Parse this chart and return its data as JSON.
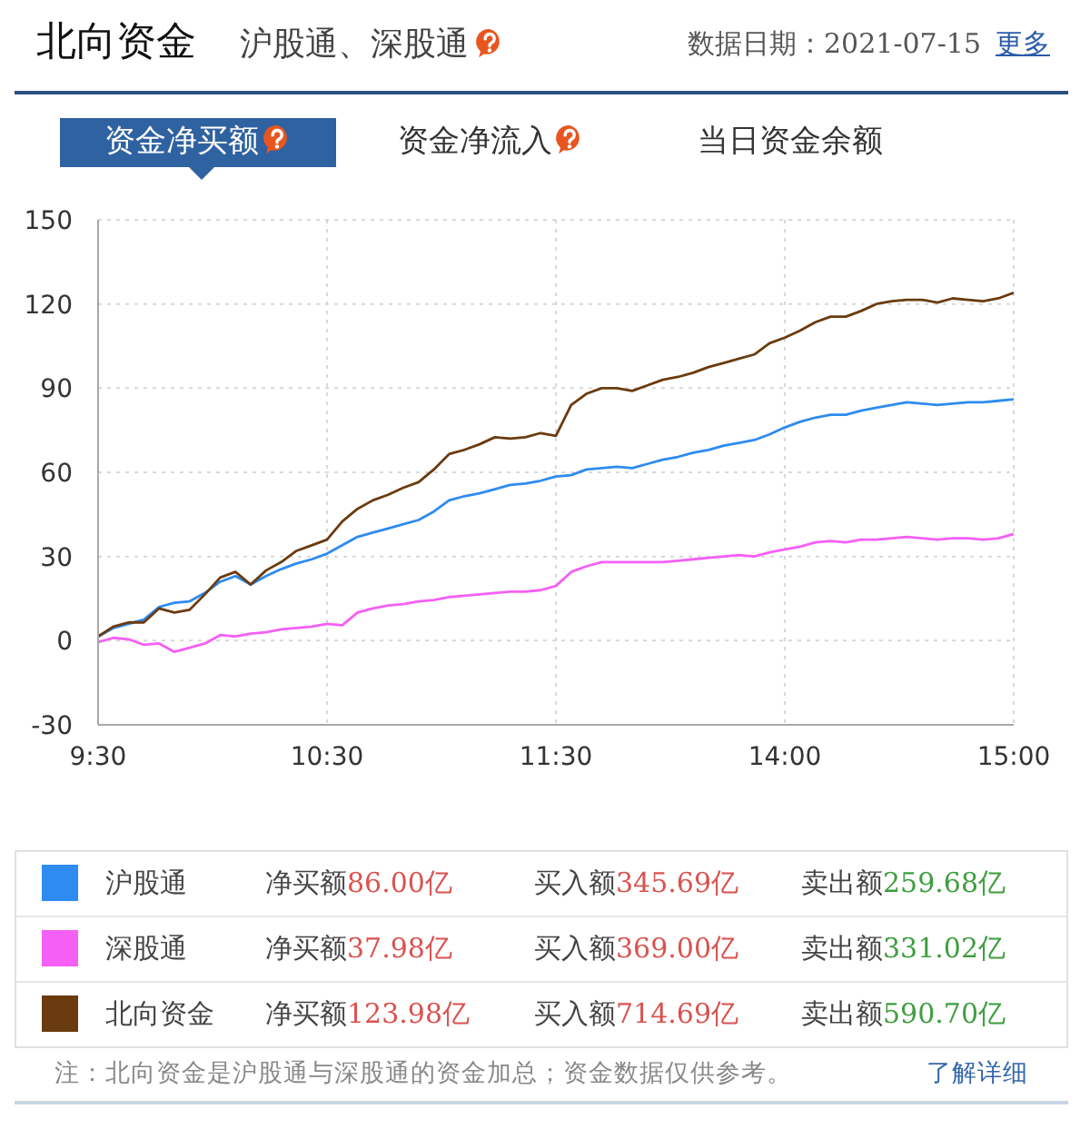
{
  "chart_data": {
    "type": "line",
    "title": "北向资金",
    "subtitle": "沪股通、深股通",
    "categories": [
      "9:30",
      null,
      null,
      null,
      null,
      null,
      null,
      null,
      null,
      null,
      null,
      null,
      null,
      null,
      null,
      "10:30",
      null,
      null,
      null,
      null,
      null,
      null,
      null,
      null,
      null,
      null,
      null,
      null,
      null,
      null,
      "11:30",
      null,
      null,
      null,
      null,
      null,
      null,
      null,
      null,
      null,
      null,
      null,
      null,
      null,
      null,
      "14:00",
      null,
      null,
      null,
      null,
      null,
      null,
      null,
      null,
      null,
      null,
      null,
      null,
      null,
      null,
      "15:00"
    ],
    "ylim": [
      -30,
      150
    ],
    "yticks": [
      -30,
      0,
      30,
      60,
      90,
      120,
      150
    ],
    "grid": true,
    "legend": "bottom",
    "series": [
      {
        "name": "沪股通",
        "color": "#2e8bef",
        "values": [
          1.5,
          4.5,
          6,
          7.5,
          12,
          13.5,
          14,
          17,
          21,
          23,
          20,
          23,
          25.5,
          27.5,
          29,
          31,
          34,
          37,
          38.5,
          40,
          41.5,
          43,
          46,
          50,
          51.5,
          52.5,
          54,
          55.5,
          56,
          57,
          58.5,
          59,
          61,
          61.5,
          62,
          61.5,
          63,
          64.5,
          65.5,
          67,
          68,
          69.5,
          70.5,
          71.5,
          73.5,
          76,
          78,
          79.5,
          80.5,
          80.5,
          82,
          83,
          84,
          85,
          84.5,
          84,
          84.5,
          85,
          85,
          85.5,
          86
        ]
      },
      {
        "name": "深股通",
        "color": "#f55ff5",
        "values": [
          -0.5,
          1,
          0.5,
          -1.5,
          -1,
          -4,
          -2.5,
          -1,
          2,
          1.5,
          2.5,
          3,
          4,
          4.5,
          5,
          6,
          5.5,
          10,
          11.5,
          12.5,
          13,
          14,
          14.5,
          15.5,
          16,
          16.5,
          17,
          17.5,
          17.5,
          18,
          19.5,
          24.5,
          26.5,
          28,
          28,
          28,
          28,
          28,
          28.5,
          29,
          29.5,
          30,
          30.5,
          30,
          31.5,
          32.5,
          33.5,
          35,
          35.5,
          35,
          36,
          36,
          36.5,
          37,
          36.5,
          36,
          36.5,
          36.5,
          36,
          36.5,
          38
        ]
      },
      {
        "name": "北向资金",
        "color": "#6a3b0e",
        "values": [
          1.5,
          5,
          6.5,
          6.5,
          11.5,
          10,
          11,
          16.5,
          22.5,
          24.5,
          20,
          25,
          28,
          32,
          34,
          36,
          42.5,
          47,
          50,
          52,
          54.5,
          56.5,
          61,
          66.5,
          68,
          70,
          72.5,
          72,
          72.5,
          74,
          73,
          84,
          88,
          90,
          90,
          89,
          91,
          93,
          94,
          95.5,
          97.5,
          99,
          100.5,
          102,
          106,
          108,
          110.5,
          113.5,
          115.5,
          115.5,
          117.5,
          120,
          121,
          121.5,
          121.5,
          120.5,
          122,
          121.5,
          121,
          122,
          124
        ]
      }
    ],
    "annotations": [
      "数据日期：2021-07-15",
      "更多",
      "资金净买额",
      "资金净流入",
      "当日资金余额",
      "净买额86.00亿",
      "买入额345.69亿",
      "卖出额259.68亿",
      "净买额37.98亿",
      "买入额369.00亿",
      "卖出额331.02亿",
      "净买额123.98亿",
      "买入额714.69亿",
      "卖出额590.70亿",
      "注：北向资金是沪股通与深股通的资金加总；资金数据仅供参考。",
      "了解详细"
    ]
  }
}
